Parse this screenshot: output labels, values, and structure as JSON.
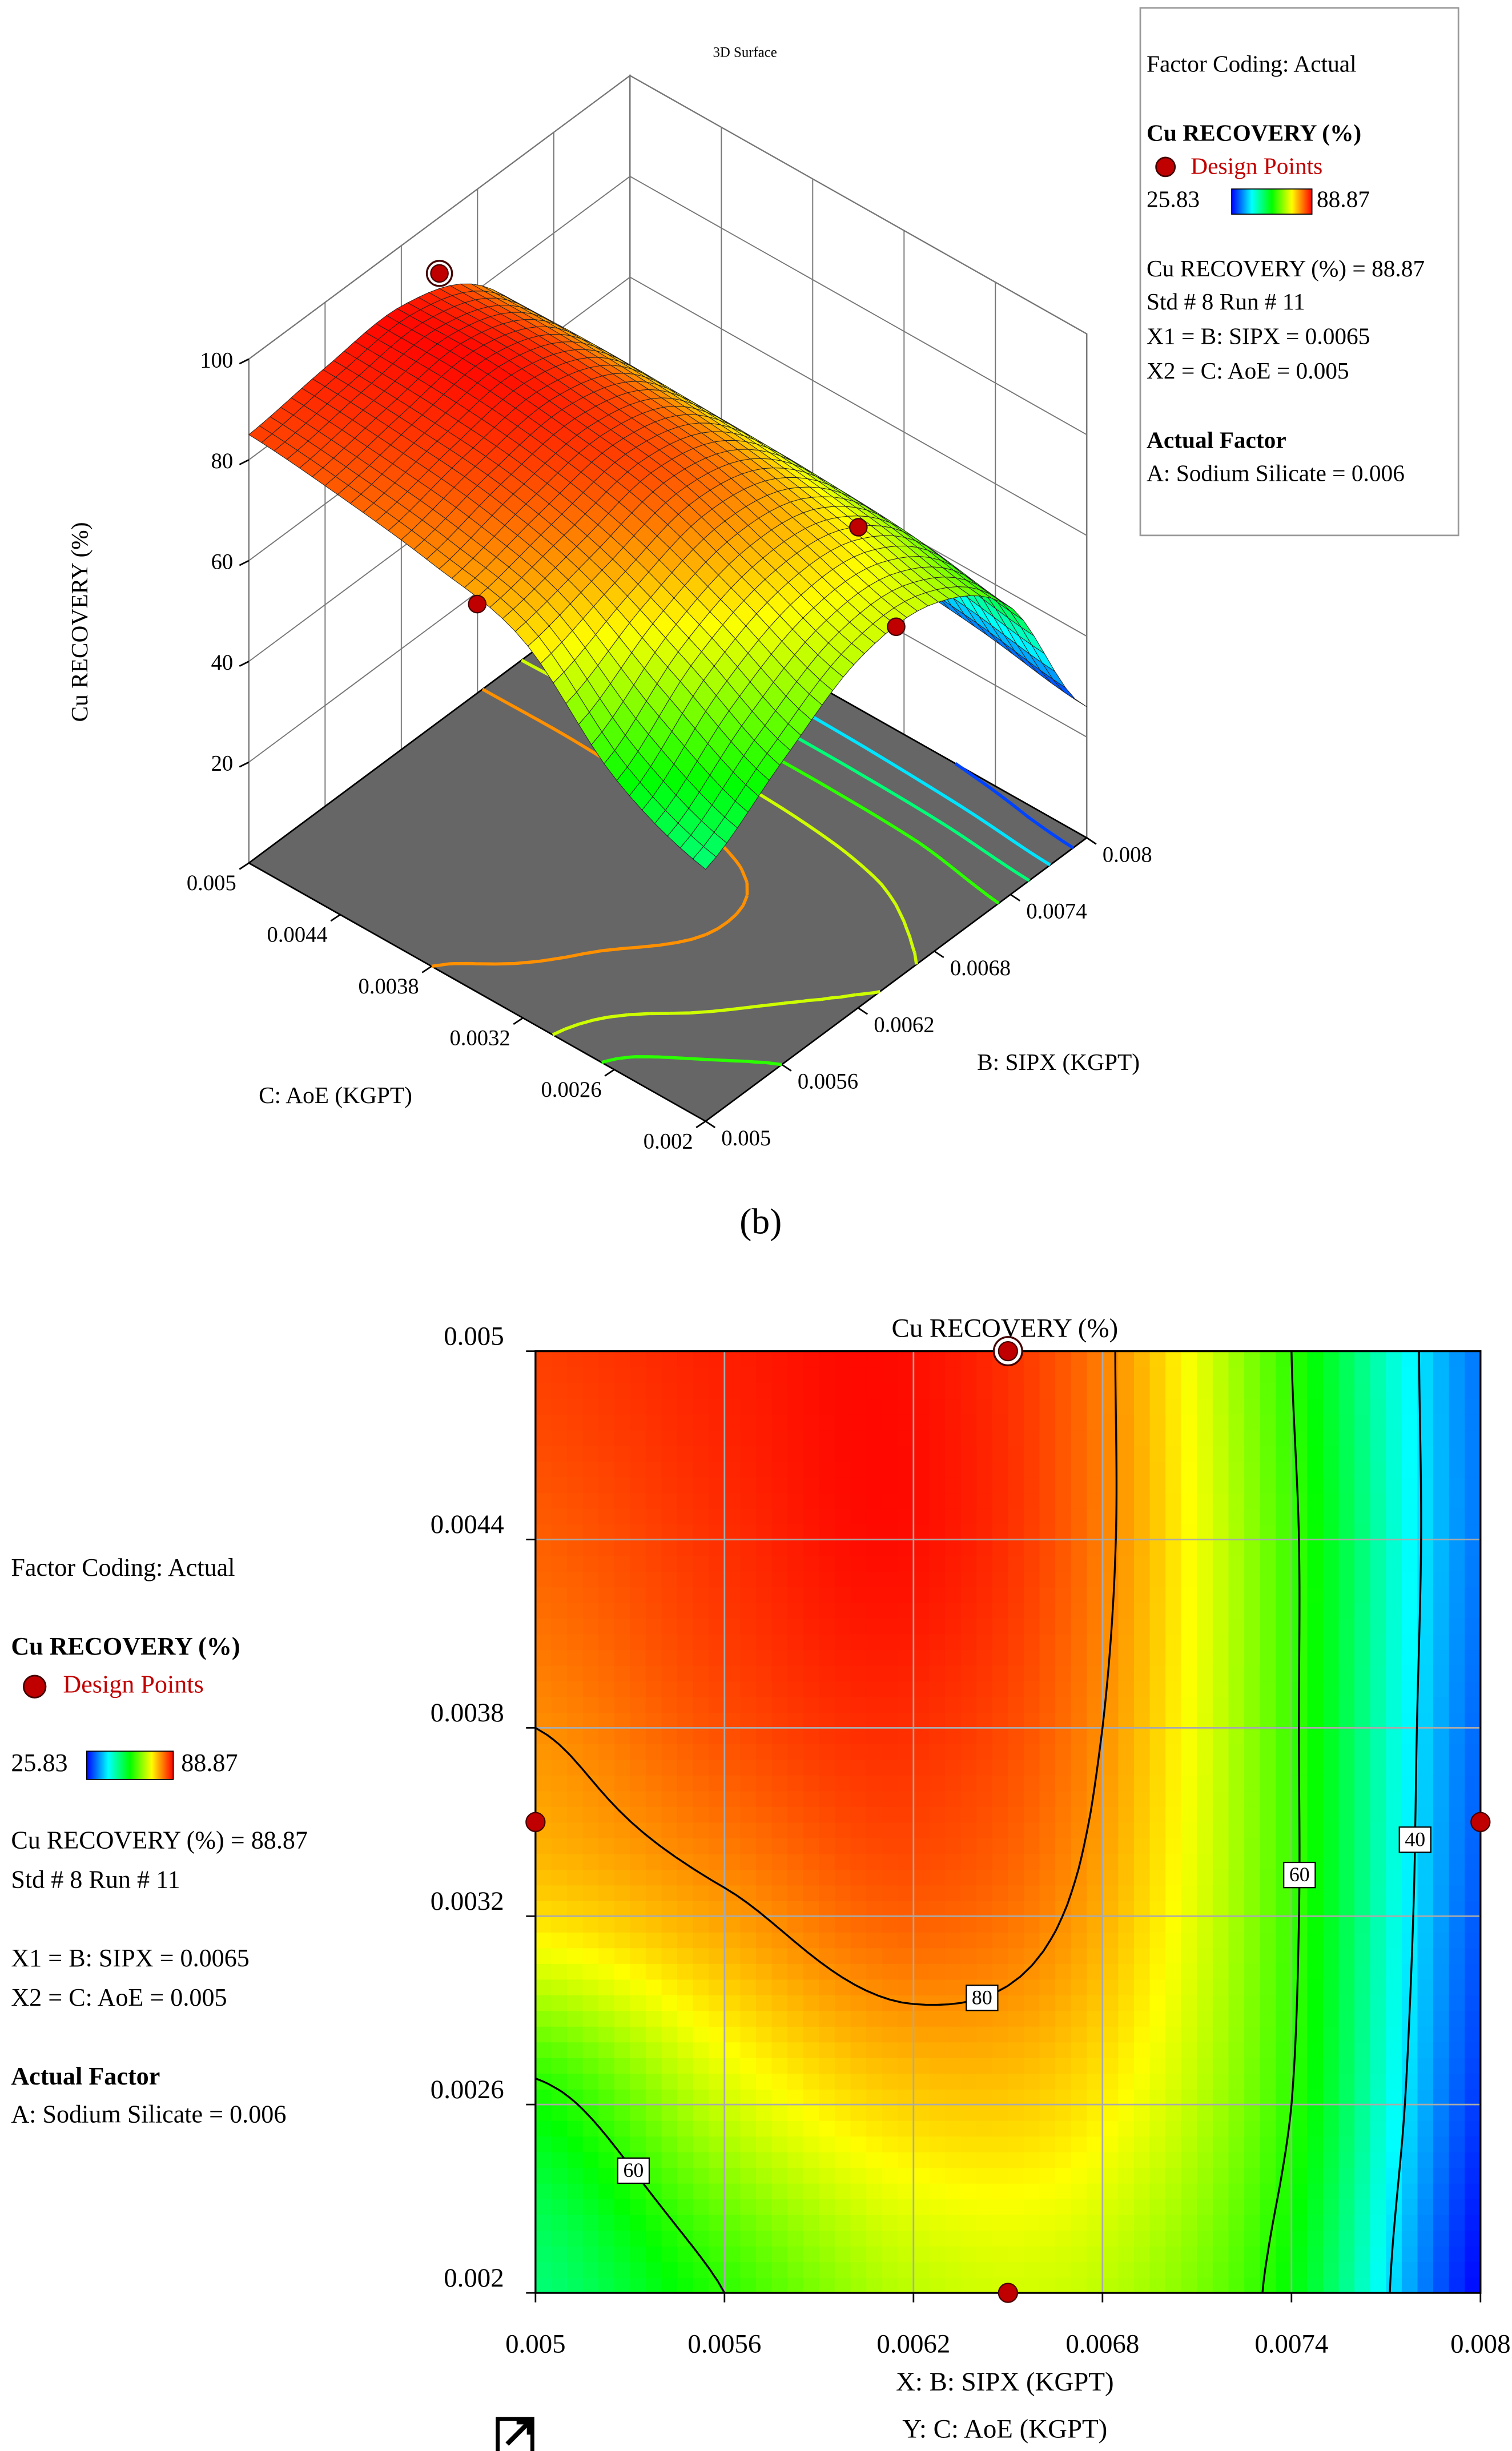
{
  "caption": "(b)",
  "legend": {
    "factor_coding": "Factor Coding: Actual",
    "response": "Cu RECOVERY (%)",
    "design_points_label": "Design Points",
    "selected": "Cu RECOVERY (%) = 88.87",
    "std_run": "Std # 8 Run # 11",
    "x1": "X1 = B: SIPX = 0.0065",
    "x2": "X2 = C: AoE = 0.005",
    "actual_factor": "Actual Factor",
    "actual_factor_value": "A: Sodium Silicate  = 0.006"
  },
  "chart_data": [
    {
      "type": "surface3d",
      "title": "3D Surface",
      "xlabel": "B: SIPX (KGPT)",
      "ylabel": "C: AoE (KGPT)",
      "zlabel": "Cu RECOVERY (%)",
      "x": [
        0.005,
        0.0056,
        0.0062,
        0.0068,
        0.0074,
        0.008
      ],
      "y": [
        0.002,
        0.0026,
        0.0032,
        0.0038,
        0.0044,
        0.005
      ],
      "z": [
        [
          50,
          60,
          69,
          69,
          57,
          26
        ],
        [
          58,
          70,
          76,
          74,
          60,
          29
        ],
        [
          75,
          79,
          83,
          78,
          61,
          31
        ],
        [
          80,
          84,
          86,
          80,
          61,
          32
        ],
        [
          83,
          86,
          88,
          81,
          61,
          33
        ],
        [
          85,
          87,
          88,
          81,
          60,
          33
        ]
      ],
      "xlim": [
        0.005,
        0.008
      ],
      "ylim": [
        0.002,
        0.005
      ],
      "zlim": [
        0,
        100
      ],
      "xticks": [
        0.005,
        0.0056,
        0.0062,
        0.0068,
        0.0074,
        0.008
      ],
      "yticks": [
        0.002,
        0.0026,
        0.0032,
        0.0038,
        0.0044,
        0.005
      ],
      "zticks": [
        20,
        40,
        60,
        80,
        100
      ],
      "colormap": [
        "#0000ff",
        "#00ffff",
        "#00ff00",
        "#ffff00",
        "#ff0000"
      ],
      "color_range": [
        25.83,
        88.87
      ],
      "floor_contours": [
        30,
        40,
        50,
        60,
        70,
        80
      ],
      "design_point_color": "#c00000",
      "design_points": {
        "x": [
          0.0065,
          0.005,
          0.008,
          0.0065
        ],
        "y": [
          0.005,
          0.0035,
          0.0035,
          0.002
        ],
        "values": [
          88.87,
          77,
          36,
          70
        ]
      }
    },
    {
      "type": "contour",
      "title": "Cu RECOVERY (%)",
      "xlabel": "X: B: SIPX (KGPT)",
      "ylabel": "Y: C: AoE (KGPT)",
      "xlim": [
        0.005,
        0.008
      ],
      "ylim": [
        0.002,
        0.005
      ],
      "xticks": [
        0.005,
        0.0056,
        0.0062,
        0.0068,
        0.0074,
        0.008
      ],
      "yticks": [
        0.002,
        0.0026,
        0.0032,
        0.0038,
        0.0044,
        0.005
      ],
      "grid": true,
      "contour_levels": [
        40,
        60,
        80
      ]
    }
  ]
}
